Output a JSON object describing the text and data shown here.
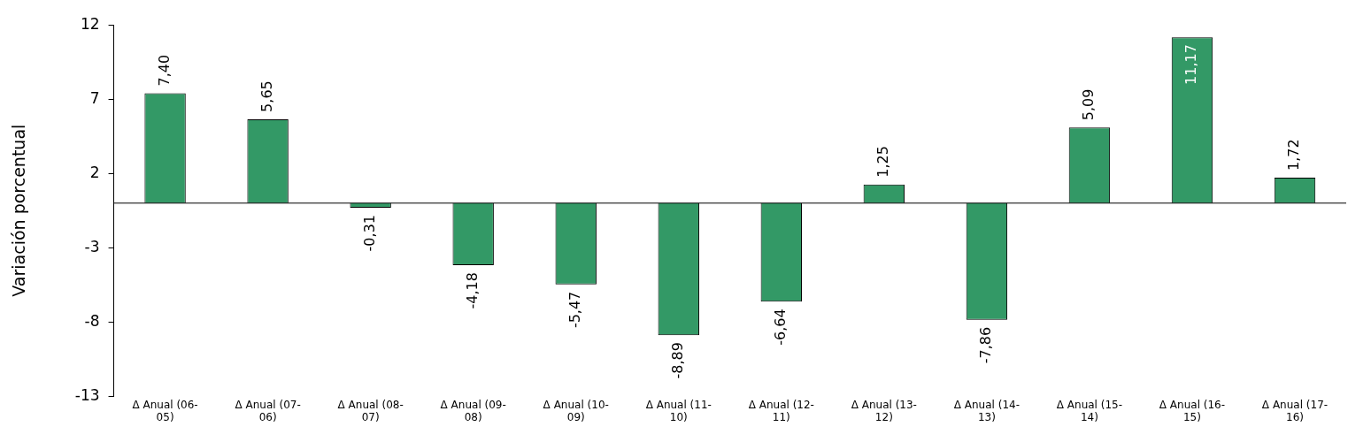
{
  "chart_data": {
    "type": "bar",
    "ylabel": "Variación porcentual",
    "categories": [
      "Δ Anual (06-05)",
      "Δ Anual (07-06)",
      "Δ Anual (08-07)",
      "Δ Anual (09-08)",
      "Δ Anual (10-09)",
      "Δ Anual (11-10)",
      "Δ Anual (12-11)",
      "Δ Anual (13-12)",
      "Δ Anual (14-13)",
      "Δ Anual (15-14)",
      "Δ Anual (16-15)",
      "Δ Anual (17-16)"
    ],
    "values": [
      7.4,
      5.65,
      -0.31,
      -4.18,
      -5.47,
      -8.89,
      -6.64,
      1.25,
      -7.86,
      5.09,
      11.17,
      1.72
    ],
    "value_labels": [
      "7,40",
      "5,65",
      "-0,31",
      "-4,18",
      "-5,47",
      "-8,89",
      "-6,64",
      "1,25",
      "-7,86",
      "5,09",
      "11,17",
      "1,72"
    ],
    "color": "#339966",
    "ylim": [
      -13,
      12
    ],
    "yticks": [
      -13,
      -8,
      -3,
      2,
      7,
      12
    ],
    "grid": false,
    "legend": false
  }
}
